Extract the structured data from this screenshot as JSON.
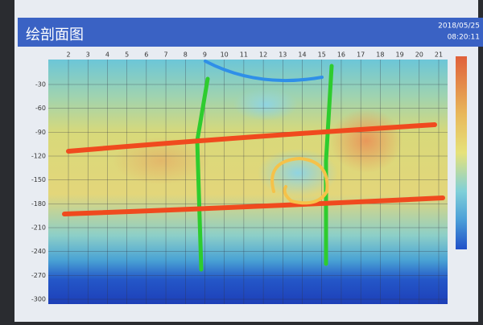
{
  "header": {
    "title": "绘剖面图",
    "date": "2018/05/25",
    "time": "08:20:11"
  },
  "plot": {
    "x_labels": [
      2,
      3,
      4,
      5,
      6,
      7,
      8,
      9,
      10,
      11,
      12,
      13,
      14,
      15,
      16,
      17,
      18,
      19,
      20,
      21
    ],
    "y_labels": [
      -30,
      -60,
      -90,
      -120,
      -150,
      -180,
      -210,
      -240,
      -270,
      -300
    ]
  }
}
